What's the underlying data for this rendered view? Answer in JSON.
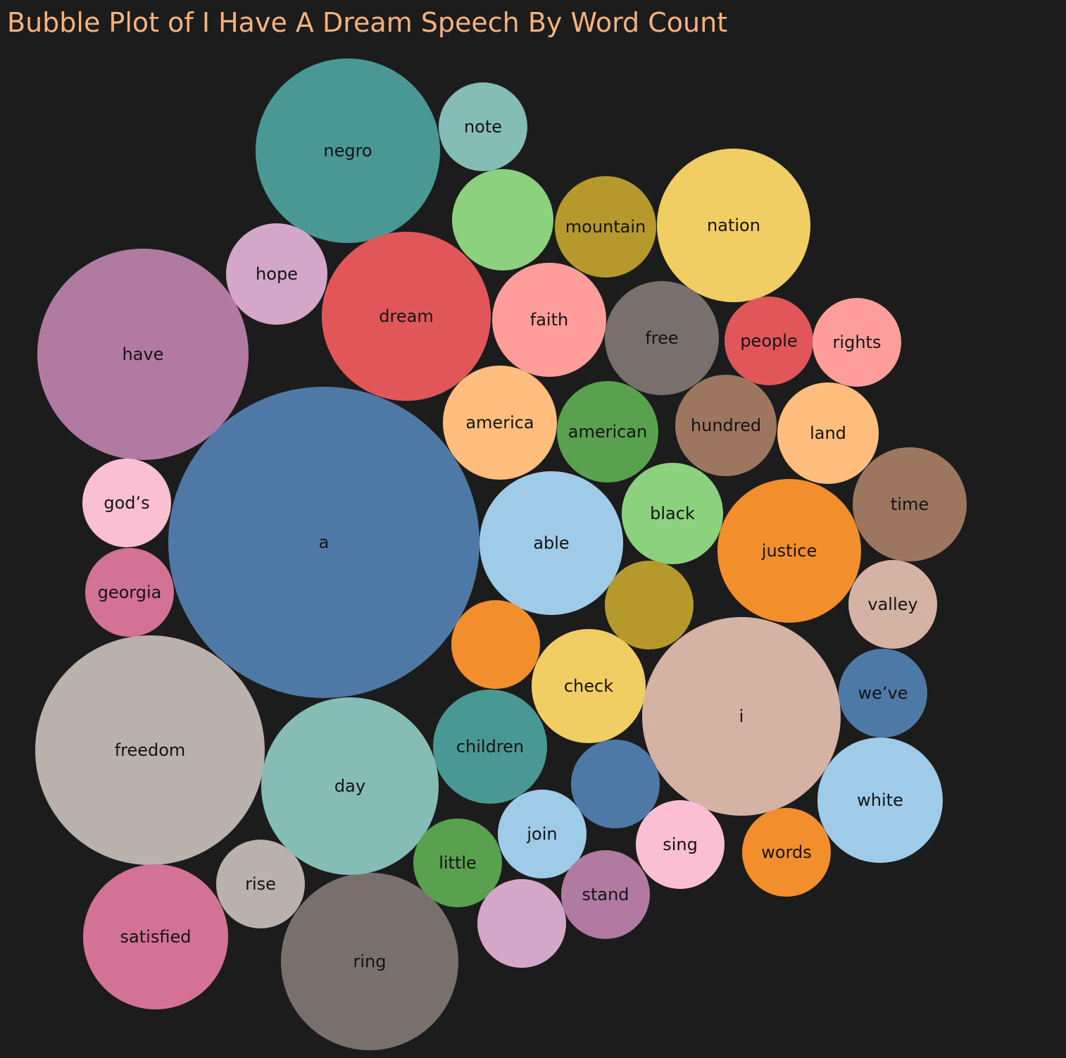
{
  "chart_data": {
    "type": "bubble",
    "title": "Bubble Plot of I Have A Dream Speech By Word Count",
    "bubbles": [
      {
        "label": "a",
        "color": "#4e79a7"
      },
      {
        "label": "freedom",
        "color": "#bab0ac"
      },
      {
        "label": "have",
        "color": "#b07aa1"
      },
      {
        "label": "i",
        "color": "#d4b3a5"
      },
      {
        "label": "negro",
        "color": "#499894"
      },
      {
        "label": "ring",
        "color": "#79706e"
      },
      {
        "label": "day",
        "color": "#86bcb6"
      },
      {
        "label": "dream",
        "color": "#e15759"
      },
      {
        "label": "nation",
        "color": "#f1ce63"
      },
      {
        "label": "satisfied",
        "color": "#d37295"
      },
      {
        "label": "able",
        "color": "#a0cbe8"
      },
      {
        "label": "justice",
        "color": "#f28e2b"
      },
      {
        "label": "white",
        "color": "#a0cbe8"
      },
      {
        "label": "faith",
        "color": "#ff9d9a"
      },
      {
        "label": "america",
        "color": "#ffbe7d"
      },
      {
        "label": "free",
        "color": "#79706e"
      },
      {
        "label": "children",
        "color": "#499894"
      },
      {
        "label": "check",
        "color": "#f1ce63"
      },
      {
        "label": "time",
        "color": "#9d7660"
      },
      {
        "label": "",
        "color": "#8cd17d"
      },
      {
        "label": "mountain",
        "color": "#b6992d"
      },
      {
        "label": "hope",
        "color": "#d4a6c8"
      },
      {
        "label": "american",
        "color": "#59a14f"
      },
      {
        "label": "hundred",
        "color": "#9d7660"
      },
      {
        "label": "land",
        "color": "#ffbe7d"
      },
      {
        "label": "black",
        "color": "#8cd17d"
      },
      {
        "label": "note",
        "color": "#86bcb6"
      },
      {
        "label": "people",
        "color": "#e15759"
      },
      {
        "label": "rights",
        "color": "#ff9d9a"
      },
      {
        "label": "god’s",
        "color": "#fabfd2"
      },
      {
        "label": "georgia",
        "color": "#d37295"
      },
      {
        "label": "valley",
        "color": "#d4b3a5"
      },
      {
        "label": "we’ve",
        "color": "#4e79a7"
      },
      {
        "label": "",
        "color": "#b6992d"
      },
      {
        "label": "",
        "color": "#f28e2b"
      },
      {
        "label": "",
        "color": "#4e79a7"
      },
      {
        "label": "join",
        "color": "#a0cbe8"
      },
      {
        "label": "little",
        "color": "#59a14f"
      },
      {
        "label": "rise",
        "color": "#bab0ac"
      },
      {
        "label": "sing",
        "color": "#fabfd2"
      },
      {
        "label": "words",
        "color": "#f28e2b"
      },
      {
        "label": "stand",
        "color": "#b07aa1"
      },
      {
        "label": "",
        "color": "#d4a6c8"
      }
    ]
  }
}
